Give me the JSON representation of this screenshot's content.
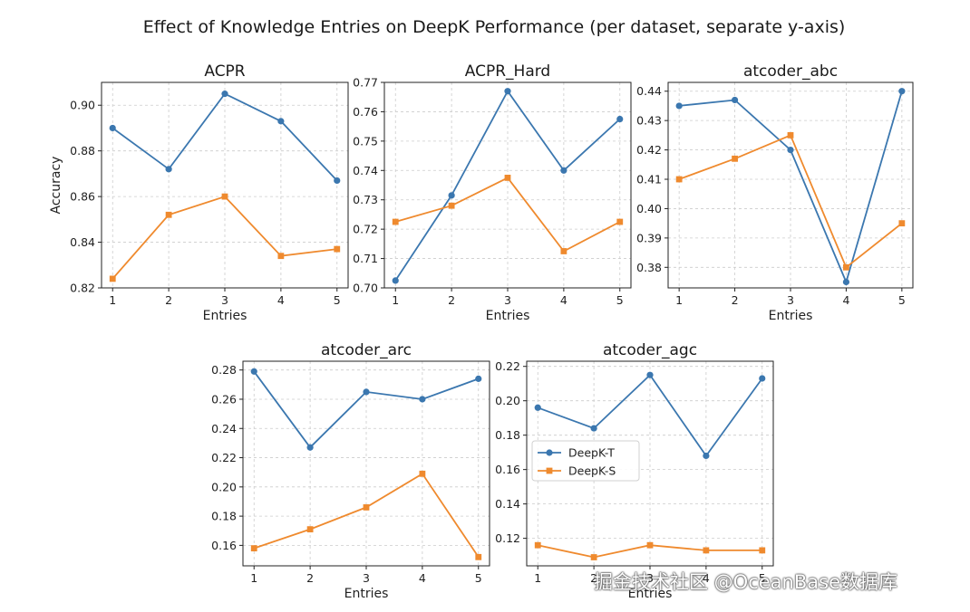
{
  "figure_title": "Effect of Knowledge Entries on DeepK Performance (per dataset, separate y-axis)",
  "watermark": "掘金技术社区 @OceanBase数据库",
  "colors": {
    "deepk_t": "#3b77af",
    "deepk_s": "#ef8a2e"
  },
  "chart_data": [
    {
      "type": "line",
      "title": "ACPR",
      "xlabel": "Entries",
      "ylabel": "Accuracy",
      "x": [
        1,
        2,
        3,
        4,
        5
      ],
      "ylim": [
        0.82,
        0.91
      ],
      "yticks": [
        0.82,
        0.84,
        0.86,
        0.88,
        0.9
      ],
      "ytick_labels": [
        "0.82",
        "0.84",
        "0.86",
        "0.88",
        "0.90"
      ],
      "series": [
        {
          "name": "DeepK-T",
          "marker": "circle",
          "values": [
            0.89,
            0.872,
            0.905,
            0.893,
            0.867
          ]
        },
        {
          "name": "DeepK-S",
          "marker": "square",
          "values": [
            0.824,
            0.852,
            0.86,
            0.834,
            0.837
          ]
        }
      ]
    },
    {
      "type": "line",
      "title": "ACPR_Hard",
      "xlabel": "Entries",
      "ylabel": "",
      "x": [
        1,
        2,
        3,
        4,
        5
      ],
      "ylim": [
        0.7,
        0.77
      ],
      "yticks": [
        0.7,
        0.71,
        0.72,
        0.73,
        0.74,
        0.75,
        0.76,
        0.77
      ],
      "ytick_labels": [
        "0.70",
        "0.71",
        "0.72",
        "0.73",
        "0.74",
        "0.75",
        "0.76",
        "0.77"
      ],
      "series": [
        {
          "name": "DeepK-T",
          "marker": "circle",
          "values": [
            0.7025,
            0.7315,
            0.767,
            0.74,
            0.7575
          ]
        },
        {
          "name": "DeepK-S",
          "marker": "square",
          "values": [
            0.7225,
            0.728,
            0.7375,
            0.7125,
            0.7225
          ]
        }
      ]
    },
    {
      "type": "line",
      "title": "atcoder_abc",
      "xlabel": "Entries",
      "ylabel": "",
      "x": [
        1,
        2,
        3,
        4,
        5
      ],
      "ylim": [
        0.373,
        0.443
      ],
      "yticks": [
        0.38,
        0.39,
        0.4,
        0.41,
        0.42,
        0.43,
        0.44
      ],
      "ytick_labels": [
        "0.38",
        "0.39",
        "0.40",
        "0.41",
        "0.42",
        "0.43",
        "0.44"
      ],
      "series": [
        {
          "name": "DeepK-T",
          "marker": "circle",
          "values": [
            0.435,
            0.437,
            0.42,
            0.375,
            0.44
          ]
        },
        {
          "name": "DeepK-S",
          "marker": "square",
          "values": [
            0.41,
            0.417,
            0.425,
            0.38,
            0.395
          ]
        }
      ]
    },
    {
      "type": "line",
      "title": "atcoder_arc",
      "xlabel": "Entries",
      "ylabel": "",
      "x": [
        1,
        2,
        3,
        4,
        5
      ],
      "ylim": [
        0.146,
        0.286
      ],
      "yticks": [
        0.16,
        0.18,
        0.2,
        0.22,
        0.24,
        0.26,
        0.28
      ],
      "ytick_labels": [
        "0.16",
        "0.18",
        "0.20",
        "0.22",
        "0.24",
        "0.26",
        "0.28"
      ],
      "series": [
        {
          "name": "DeepK-T",
          "marker": "circle",
          "values": [
            0.279,
            0.227,
            0.265,
            0.26,
            0.274
          ]
        },
        {
          "name": "DeepK-S",
          "marker": "square",
          "values": [
            0.158,
            0.171,
            0.186,
            0.209,
            0.152
          ]
        }
      ]
    },
    {
      "type": "line",
      "title": "atcoder_agc",
      "xlabel": "Entries",
      "ylabel": "",
      "x": [
        1,
        2,
        3,
        4,
        5
      ],
      "ylim": [
        0.104,
        0.223
      ],
      "yticks": [
        0.12,
        0.14,
        0.16,
        0.18,
        0.2,
        0.22
      ],
      "ytick_labels": [
        "0.12",
        "0.14",
        "0.16",
        "0.18",
        "0.20",
        "0.22"
      ],
      "legend": "center-left",
      "series": [
        {
          "name": "DeepK-T",
          "marker": "circle",
          "values": [
            0.196,
            0.184,
            0.215,
            0.168,
            0.213
          ]
        },
        {
          "name": "DeepK-S",
          "marker": "square",
          "values": [
            0.116,
            0.109,
            0.116,
            0.113,
            0.113
          ]
        }
      ]
    }
  ]
}
